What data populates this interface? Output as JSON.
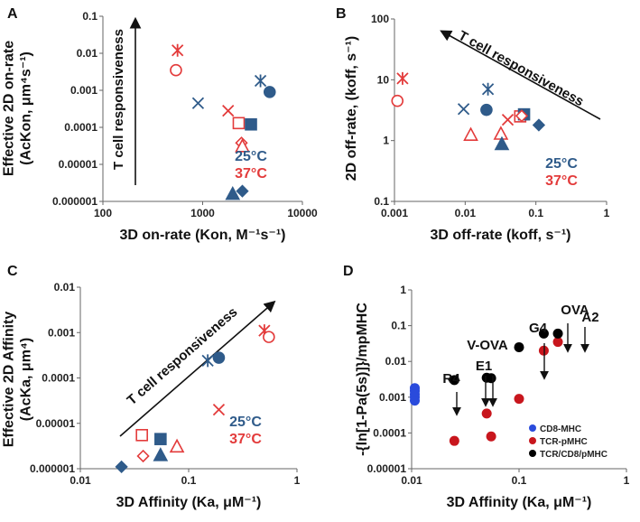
{
  "colors": {
    "c25": "#2f5b8a",
    "c37": "#e33b3b",
    "blue": "#2a4bdc",
    "red": "#c8161d",
    "black": "#000000"
  },
  "chart_data": [
    {
      "panel": "A",
      "type": "scatter",
      "ylabel_lines": [
        "Effective 2D on-rate",
        "(AcKon, μm⁴s⁻¹)"
      ],
      "xlabel": "3D on-rate (Kon, M⁻¹s⁻¹)",
      "x_scale": "log",
      "y_scale": "log",
      "xlim": [
        100,
        10000
      ],
      "ylim": [
        1e-06,
        0.1
      ],
      "x_ticks": [
        100,
        1000,
        10000
      ],
      "x_tick_labels": [
        "100",
        "1000",
        "10000"
      ],
      "y_ticks": [
        1e-06,
        1e-05,
        0.0001,
        0.001,
        0.01,
        0.1
      ],
      "y_tick_labels": [
        "0.000001",
        "0.00001",
        "0.0001",
        "0.001",
        "0.01",
        "0.1"
      ],
      "arrow_label": "T cell responsiveness",
      "legend": [
        {
          "text": "25°C",
          "color": "#2f5b8a"
        },
        {
          "text": "37°C",
          "color": "#e33b3b"
        }
      ],
      "points": [
        {
          "x": 560,
          "y": 0.012,
          "shape": "asterisk",
          "temp": "37"
        },
        {
          "x": 540,
          "y": 0.0035,
          "shape": "circle",
          "temp": "37",
          "fill": false
        },
        {
          "x": 3800,
          "y": 0.0018,
          "shape": "asterisk",
          "temp": "25"
        },
        {
          "x": 4700,
          "y": 0.0009,
          "shape": "circle",
          "temp": "25",
          "fill": true
        },
        {
          "x": 900,
          "y": 0.00045,
          "shape": "x",
          "temp": "25"
        },
        {
          "x": 1800,
          "y": 0.00028,
          "shape": "x",
          "temp": "37"
        },
        {
          "x": 2300,
          "y": 0.00013,
          "shape": "square",
          "temp": "37",
          "fill": false
        },
        {
          "x": 3050,
          "y": 0.00012,
          "shape": "square",
          "temp": "25",
          "fill": true
        },
        {
          "x": 2450,
          "y": 3.8e-05,
          "shape": "diamond",
          "temp": "37",
          "fill": false
        },
        {
          "x": 2500,
          "y": 3.1e-05,
          "shape": "triangle",
          "temp": "37",
          "fill": false
        },
        {
          "x": 2000,
          "y": 1.6e-06,
          "shape": "triangle",
          "temp": "25",
          "fill": true
        },
        {
          "x": 2500,
          "y": 1.9e-06,
          "shape": "diamond",
          "temp": "25",
          "fill": true
        }
      ]
    },
    {
      "panel": "B",
      "type": "scatter",
      "ylabel_lines": [
        "2D off-rate, (koff, s⁻¹)"
      ],
      "xlabel": "3D off-rate (koff, s⁻¹)",
      "x_scale": "log",
      "y_scale": "log",
      "xlim": [
        0.001,
        1
      ],
      "ylim": [
        0.1,
        100
      ],
      "x_ticks": [
        0.001,
        0.01,
        0.1,
        1
      ],
      "x_tick_labels": [
        "0.001",
        "0.01",
        "0.1",
        "1"
      ],
      "y_ticks": [
        0.1,
        1,
        10,
        100
      ],
      "y_tick_labels": [
        "0.1",
        "1",
        "10",
        "100"
      ],
      "arrow_label": "T cell responsiveness",
      "legend": [
        {
          "text": "25°C",
          "color": "#2f5b8a"
        },
        {
          "text": "37°C",
          "color": "#e33b3b"
        }
      ],
      "points": [
        {
          "x": 0.0013,
          "y": 10.5,
          "shape": "asterisk",
          "temp": "37"
        },
        {
          "x": 0.0011,
          "y": 4.5,
          "shape": "circle",
          "temp": "37",
          "fill": false
        },
        {
          "x": 0.0095,
          "y": 3.3,
          "shape": "x",
          "temp": "25"
        },
        {
          "x": 0.021,
          "y": 7,
          "shape": "asterisk",
          "temp": "25"
        },
        {
          "x": 0.02,
          "y": 3.2,
          "shape": "circle",
          "temp": "25",
          "fill": true
        },
        {
          "x": 0.012,
          "y": 1.25,
          "shape": "triangle",
          "temp": "37",
          "fill": false
        },
        {
          "x": 0.032,
          "y": 1.3,
          "shape": "triangle",
          "temp": "37",
          "fill": false
        },
        {
          "x": 0.033,
          "y": 0.88,
          "shape": "triangle",
          "temp": "25",
          "fill": true
        },
        {
          "x": 0.04,
          "y": 2.2,
          "shape": "x",
          "temp": "37"
        },
        {
          "x": 0.06,
          "y": 2.5,
          "shape": "square",
          "temp": "37",
          "fill": false
        },
        {
          "x": 0.068,
          "y": 2.7,
          "shape": "square",
          "temp": "25",
          "fill": true
        },
        {
          "x": 0.063,
          "y": 2.55,
          "shape": "diamond",
          "temp": "37",
          "fill": false
        },
        {
          "x": 0.11,
          "y": 1.8,
          "shape": "diamond",
          "temp": "25",
          "fill": true
        }
      ]
    },
    {
      "panel": "C",
      "type": "scatter",
      "ylabel_lines": [
        "Effective 2D Affinity",
        "(AcKa, μm⁴)"
      ],
      "xlabel": "3D Affinity (Ka, μM⁻¹)",
      "x_scale": "log",
      "y_scale": "log",
      "xlim": [
        0.01,
        1
      ],
      "ylim": [
        1e-06,
        0.01
      ],
      "x_ticks": [
        0.01,
        0.1,
        1
      ],
      "x_tick_labels": [
        "0.01",
        "0.1",
        "1"
      ],
      "y_ticks": [
        1e-06,
        1e-05,
        0.0001,
        0.001,
        0.01
      ],
      "y_tick_labels": [
        "0.000001",
        "0.00001",
        "0.0001",
        "0.001",
        "0.01"
      ],
      "arrow_label": "T cell responsiveness",
      "legend": [
        {
          "text": "25°C",
          "color": "#2f5b8a"
        },
        {
          "text": "37°C",
          "color": "#e33b3b"
        }
      ],
      "points": [
        {
          "x": 0.5,
          "y": 0.0011,
          "shape": "asterisk",
          "temp": "37"
        },
        {
          "x": 0.55,
          "y": 0.0008,
          "shape": "circle",
          "temp": "37",
          "fill": false
        },
        {
          "x": 0.15,
          "y": 0.00024,
          "shape": "asterisk",
          "temp": "25"
        },
        {
          "x": 0.19,
          "y": 0.00028,
          "shape": "circle",
          "temp": "25",
          "fill": true
        },
        {
          "x": 0.19,
          "y": 2e-05,
          "shape": "x",
          "temp": "37"
        },
        {
          "x": 0.037,
          "y": 5.5e-06,
          "shape": "square",
          "temp": "37",
          "fill": false
        },
        {
          "x": 0.055,
          "y": 4.5e-06,
          "shape": "square",
          "temp": "25",
          "fill": true
        },
        {
          "x": 0.078,
          "y": 3.1e-06,
          "shape": "triangle",
          "temp": "37",
          "fill": false
        },
        {
          "x": 0.038,
          "y": 1.9e-06,
          "shape": "diamond",
          "temp": "37",
          "fill": false
        },
        {
          "x": 0.055,
          "y": 2e-06,
          "shape": "triangle",
          "temp": "25",
          "fill": true
        },
        {
          "x": 0.024,
          "y": 1.1e-06,
          "shape": "diamond",
          "temp": "25",
          "fill": true
        }
      ]
    },
    {
      "panel": "D",
      "type": "scatter",
      "ylabel_lines": [
        "-{ln[1-Pa(5s)]}/mpMHC"
      ],
      "xlabel": "3D Affinity (Ka, μM⁻¹)",
      "x_scale": "log",
      "y_scale": "log",
      "xlim": [
        0.01,
        1
      ],
      "ylim": [
        1e-05,
        1
      ],
      "x_ticks": [
        0.01,
        0.1,
        1
      ],
      "x_tick_labels": [
        "0.01",
        "0.1",
        "1"
      ],
      "y_ticks": [
        1e-05,
        0.0001,
        0.001,
        0.01,
        0.1,
        1
      ],
      "y_tick_labels": [
        "0.00001",
        "0.0001",
        "0.001",
        "0.01",
        "0.1",
        "1"
      ],
      "legend": [
        {
          "text": "CD8-MHC",
          "color": "#2a4bdc"
        },
        {
          "text": "TCR-pMHC",
          "color": "#c8161d"
        },
        {
          "text": "TCR/CD8/pMHC",
          "color": "#000000"
        }
      ],
      "annotations": [
        {
          "text": "R4",
          "x": 0.025
        },
        {
          "text": "V-OVA",
          "x": 0.05
        },
        {
          "text": "E1",
          "x": 0.055
        },
        {
          "text": "G4",
          "x": 0.1
        },
        {
          "text": "OVA",
          "x": 0.17
        },
        {
          "text": "A2",
          "x": 0.23
        }
      ],
      "series": [
        {
          "name": "CD8-MHC",
          "x": [
            0.0107,
            0.0107,
            0.0107,
            0.0107,
            0.0107
          ],
          "y": [
            0.0018,
            0.0015,
            0.0012,
            0.001,
            0.0008
          ]
        },
        {
          "name": "TCR-pMHC",
          "x": [
            0.025,
            0.05,
            0.055,
            0.1,
            0.17,
            0.23
          ],
          "y": [
            6e-05,
            0.00035,
            8e-05,
            0.0009,
            0.02,
            0.035
          ]
        },
        {
          "name": "TCR/CD8/pMHC",
          "x": [
            0.025,
            0.05,
            0.055,
            0.1,
            0.17,
            0.23
          ],
          "y": [
            0.003,
            0.0035,
            0.0034,
            0.025,
            0.06,
            0.06
          ]
        }
      ]
    }
  ]
}
